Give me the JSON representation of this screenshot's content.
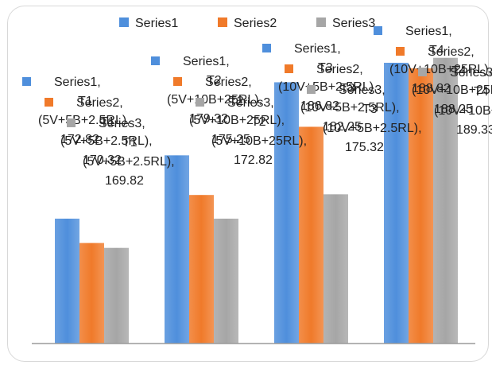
{
  "chart_data": {
    "type": "bar",
    "categories": [
      "T1 (5V+5B+2.5RL)",
      "T2 (5V+10B+25RL)",
      "T3 (10V+5B+2.5RL)",
      "T4 (10V+10B+25RL)"
    ],
    "category_codes": [
      "T1",
      "T2",
      "T3",
      "T4"
    ],
    "category_mixes": [
      "(5V+5B+2.5RL)",
      "(5V+10B+25RL)",
      "(10V+5B+2.5RL)",
      "(10V+10B+25RL)"
    ],
    "series": [
      {
        "name": "Series1",
        "values": [
          172.82,
          179.32,
          186.82,
          188.82
        ]
      },
      {
        "name": "Series2",
        "values": [
          170.32,
          175.25,
          182.25,
          188.25
        ]
      },
      {
        "name": "Series3",
        "values": [
          169.82,
          172.82,
          175.32,
          189.33
        ]
      }
    ],
    "legend": {
      "placement": "top",
      "labels": [
        "Series1",
        "Series2",
        "Series3"
      ]
    },
    "ylim": [
      160,
      192
    ],
    "grid": false,
    "title": "",
    "xlabel": "",
    "ylabel": "",
    "colors": [
      "#4f8fdc",
      "#f07a2a",
      "#a6a6a6"
    ],
    "axis_color": "#9a9a9a"
  }
}
